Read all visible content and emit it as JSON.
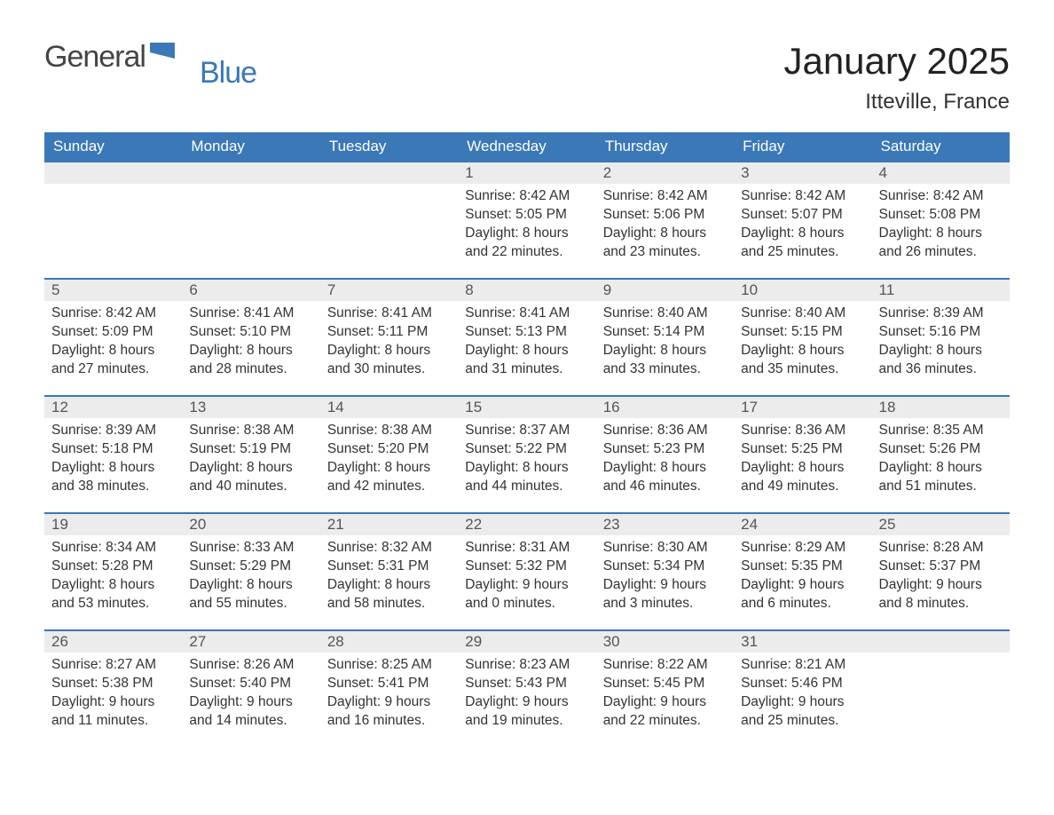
{
  "logo": {
    "general": "General",
    "blue": "Blue"
  },
  "title": "January 2025",
  "location": "Itteville, France",
  "colors": {
    "header_bg": "#3b78b8",
    "header_text": "#ffffff",
    "daynum_bg": "#ececec",
    "row_border": "#3b78b8",
    "body_text": "#333333",
    "logo_gray": "#444444",
    "logo_blue": "#3b78b8",
    "page_bg": "#ffffff"
  },
  "weekdays": [
    "Sunday",
    "Monday",
    "Tuesday",
    "Wednesday",
    "Thursday",
    "Friday",
    "Saturday"
  ],
  "labels": {
    "sunrise": "Sunrise:",
    "sunset": "Sunset:",
    "daylight": "Daylight:"
  },
  "weeks": [
    [
      {
        "empty": true
      },
      {
        "empty": true
      },
      {
        "empty": true
      },
      {
        "day": "1",
        "sunrise": "8:42 AM",
        "sunset": "5:05 PM",
        "daylight": "8 hours and 22 minutes."
      },
      {
        "day": "2",
        "sunrise": "8:42 AM",
        "sunset": "5:06 PM",
        "daylight": "8 hours and 23 minutes."
      },
      {
        "day": "3",
        "sunrise": "8:42 AM",
        "sunset": "5:07 PM",
        "daylight": "8 hours and 25 minutes."
      },
      {
        "day": "4",
        "sunrise": "8:42 AM",
        "sunset": "5:08 PM",
        "daylight": "8 hours and 26 minutes."
      }
    ],
    [
      {
        "day": "5",
        "sunrise": "8:42 AM",
        "sunset": "5:09 PM",
        "daylight": "8 hours and 27 minutes."
      },
      {
        "day": "6",
        "sunrise": "8:41 AM",
        "sunset": "5:10 PM",
        "daylight": "8 hours and 28 minutes."
      },
      {
        "day": "7",
        "sunrise": "8:41 AM",
        "sunset": "5:11 PM",
        "daylight": "8 hours and 30 minutes."
      },
      {
        "day": "8",
        "sunrise": "8:41 AM",
        "sunset": "5:13 PM",
        "daylight": "8 hours and 31 minutes."
      },
      {
        "day": "9",
        "sunrise": "8:40 AM",
        "sunset": "5:14 PM",
        "daylight": "8 hours and 33 minutes."
      },
      {
        "day": "10",
        "sunrise": "8:40 AM",
        "sunset": "5:15 PM",
        "daylight": "8 hours and 35 minutes."
      },
      {
        "day": "11",
        "sunrise": "8:39 AM",
        "sunset": "5:16 PM",
        "daylight": "8 hours and 36 minutes."
      }
    ],
    [
      {
        "day": "12",
        "sunrise": "8:39 AM",
        "sunset": "5:18 PM",
        "daylight": "8 hours and 38 minutes."
      },
      {
        "day": "13",
        "sunrise": "8:38 AM",
        "sunset": "5:19 PM",
        "daylight": "8 hours and 40 minutes."
      },
      {
        "day": "14",
        "sunrise": "8:38 AM",
        "sunset": "5:20 PM",
        "daylight": "8 hours and 42 minutes."
      },
      {
        "day": "15",
        "sunrise": "8:37 AM",
        "sunset": "5:22 PM",
        "daylight": "8 hours and 44 minutes."
      },
      {
        "day": "16",
        "sunrise": "8:36 AM",
        "sunset": "5:23 PM",
        "daylight": "8 hours and 46 minutes."
      },
      {
        "day": "17",
        "sunrise": "8:36 AM",
        "sunset": "5:25 PM",
        "daylight": "8 hours and 49 minutes."
      },
      {
        "day": "18",
        "sunrise": "8:35 AM",
        "sunset": "5:26 PM",
        "daylight": "8 hours and 51 minutes."
      }
    ],
    [
      {
        "day": "19",
        "sunrise": "8:34 AM",
        "sunset": "5:28 PM",
        "daylight": "8 hours and 53 minutes."
      },
      {
        "day": "20",
        "sunrise": "8:33 AM",
        "sunset": "5:29 PM",
        "daylight": "8 hours and 55 minutes."
      },
      {
        "day": "21",
        "sunrise": "8:32 AM",
        "sunset": "5:31 PM",
        "daylight": "8 hours and 58 minutes."
      },
      {
        "day": "22",
        "sunrise": "8:31 AM",
        "sunset": "5:32 PM",
        "daylight": "9 hours and 0 minutes."
      },
      {
        "day": "23",
        "sunrise": "8:30 AM",
        "sunset": "5:34 PM",
        "daylight": "9 hours and 3 minutes."
      },
      {
        "day": "24",
        "sunrise": "8:29 AM",
        "sunset": "5:35 PM",
        "daylight": "9 hours and 6 minutes."
      },
      {
        "day": "25",
        "sunrise": "8:28 AM",
        "sunset": "5:37 PM",
        "daylight": "9 hours and 8 minutes."
      }
    ],
    [
      {
        "day": "26",
        "sunrise": "8:27 AM",
        "sunset": "5:38 PM",
        "daylight": "9 hours and 11 minutes."
      },
      {
        "day": "27",
        "sunrise": "8:26 AM",
        "sunset": "5:40 PM",
        "daylight": "9 hours and 14 minutes."
      },
      {
        "day": "28",
        "sunrise": "8:25 AM",
        "sunset": "5:41 PM",
        "daylight": "9 hours and 16 minutes."
      },
      {
        "day": "29",
        "sunrise": "8:23 AM",
        "sunset": "5:43 PM",
        "daylight": "9 hours and 19 minutes."
      },
      {
        "day": "30",
        "sunrise": "8:22 AM",
        "sunset": "5:45 PM",
        "daylight": "9 hours and 22 minutes."
      },
      {
        "day": "31",
        "sunrise": "8:21 AM",
        "sunset": "5:46 PM",
        "daylight": "9 hours and 25 minutes."
      },
      {
        "empty": true
      }
    ]
  ]
}
